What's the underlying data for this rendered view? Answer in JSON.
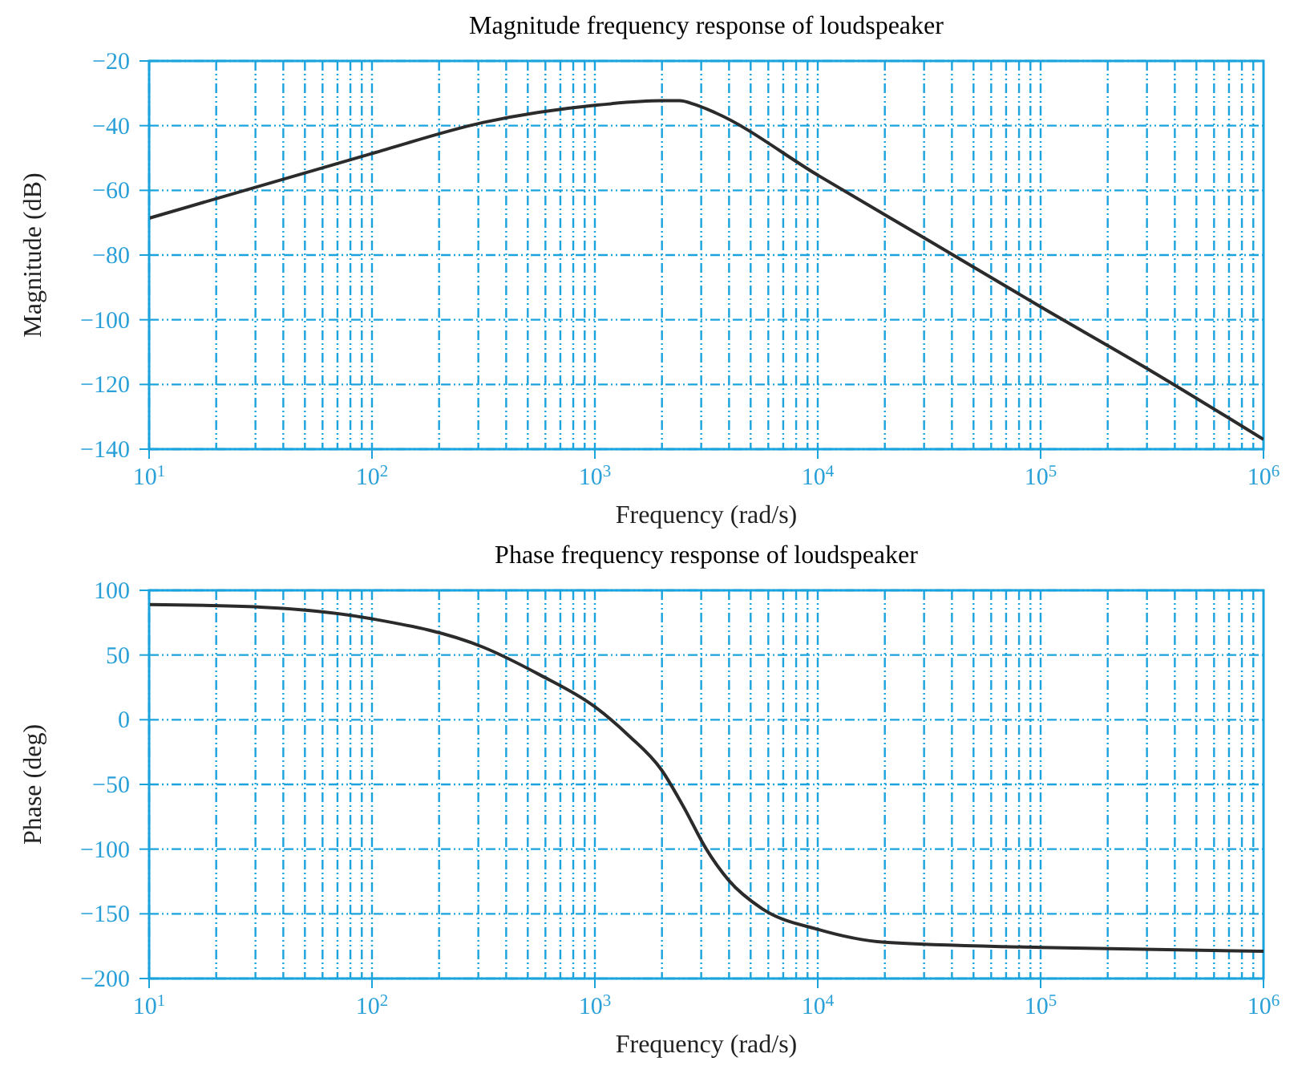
{
  "chart_data": [
    {
      "type": "line",
      "title": "Magnitude frequency response of loudspeaker",
      "xlabel": "Frequency (rad/s)",
      "ylabel": "Magnitude (dB)",
      "log": "x",
      "grid": true,
      "line_style": "solid",
      "marker": "none",
      "xlim": [
        10,
        1000000
      ],
      "xticks": [
        {
          "value": 10,
          "label": "10$^{1}$"
        },
        {
          "value": 100,
          "label": "10$^{2}$"
        },
        {
          "value": 1000,
          "label": "10$^{3}$"
        },
        {
          "value": 10000,
          "label": "10$^{4}$"
        },
        {
          "value": 100000,
          "label": "10$^{5}$"
        },
        {
          "value": 1000000,
          "label": "10$^{6}$"
        }
      ],
      "ylim": [
        -140,
        -20
      ],
      "yticks": [
        {
          "value": -140,
          "label": "−140"
        },
        {
          "value": -120,
          "label": "−120"
        },
        {
          "value": -100,
          "label": "−100"
        },
        {
          "value": -80,
          "label": "−80"
        },
        {
          "value": -60,
          "label": "−60"
        },
        {
          "value": -40,
          "label": "−40"
        },
        {
          "value": -20,
          "label": "−20"
        }
      ],
      "series": [
        {
          "color": "#2b2b2b",
          "x": [
            10,
            100,
            316,
            1000,
            1995,
            2399,
            2818,
            3467,
            10000,
            31623,
            100000,
            316228,
            1000000
          ],
          "values": [
            -68.6,
            -48.6,
            -39,
            -33.7,
            -32.3,
            -32.3,
            -33.5,
            -36,
            -55.3,
            -75.6,
            -96,
            -116,
            -137
          ]
        }
      ]
    },
    {
      "type": "line",
      "title": "Phase frequency response of loudspeaker",
      "xlabel": "Frequency (rad/s)",
      "ylabel": "Phase (deg)",
      "log": "x",
      "grid": true,
      "line_style": "solid",
      "marker": "none",
      "xlim": [
        10,
        1000000
      ],
      "xticks": [
        {
          "value": 10,
          "label": "10$^{1}$"
        },
        {
          "value": 100,
          "label": "10$^{2}$"
        },
        {
          "value": 1000,
          "label": "10$^{3}$"
        },
        {
          "value": 10000,
          "label": "10$^{4}$"
        },
        {
          "value": 100000,
          "label": "10$^{5}$"
        },
        {
          "value": 1000000,
          "label": "10$^{6}$"
        }
      ],
      "ylim": [
        -200,
        100
      ],
      "yticks": [
        {
          "value": -200,
          "label": "−200"
        },
        {
          "value": -150,
          "label": "−150"
        },
        {
          "value": -100,
          "label": "−100"
        },
        {
          "value": -50,
          "label": "−50"
        },
        0,
        50,
        100
      ],
      "series": [
        {
          "color": "#2b2b2b",
          "x": [
            10,
            31.6,
            100,
            316,
            562,
            1000,
            1413,
            1995,
            2512,
            3162,
            3981,
            5623,
            10000,
            19953,
            100000,
            1000000
          ],
          "values": [
            89,
            87,
            78,
            56,
            35,
            10,
            -12,
            -39,
            -68,
            -100,
            -124,
            -146,
            -162,
            -172,
            -176,
            -179
          ]
        }
      ]
    }
  ]
}
